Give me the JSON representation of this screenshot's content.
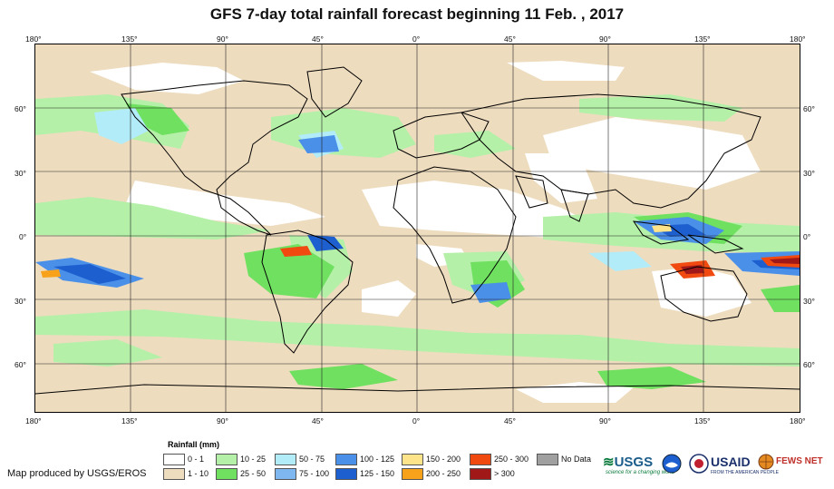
{
  "title": "GFS 7-day total rainfall forecast beginning 11 Feb. , 2017",
  "lon_ticks": [
    "180°",
    "135°",
    "90°",
    "45°",
    "0°",
    "45°",
    "90°",
    "135°",
    "180°"
  ],
  "lat_ticks": [
    "60°",
    "30°",
    "0°",
    "30°",
    "60°"
  ],
  "legend": {
    "title": "Rainfall (mm)",
    "items": [
      {
        "label": "0 - 1",
        "color": "#ffffff"
      },
      {
        "label": "1 - 10",
        "color": "#eedcbf"
      },
      {
        "label": "10 - 25",
        "color": "#b4f0a8"
      },
      {
        "label": "25 - 50",
        "color": "#6fe060"
      },
      {
        "label": "50 - 75",
        "color": "#b2ecf8"
      },
      {
        "label": "75 - 100",
        "color": "#7fb8f0"
      },
      {
        "label": "100 - 125",
        "color": "#4a90e8"
      },
      {
        "label": "125 - 150",
        "color": "#1e5fd0"
      },
      {
        "label": "150 - 200",
        "color": "#fde38a"
      },
      {
        "label": "200 - 250",
        "color": "#f7a21a"
      },
      {
        "label": "250 - 300",
        "color": "#f04a10"
      },
      {
        "label": "> 300",
        "color": "#a01818"
      },
      {
        "label": "No Data",
        "color": "#a0a0a0"
      }
    ]
  },
  "credit": "Map produced by USGS/EROS",
  "logos": {
    "usgs": "USGS",
    "usgs_tagline": "science for a changing world",
    "usaid": "USAID",
    "usaid_tagline": "FROM THE AMERICAN PEOPLE",
    "fewsnet": "FEWS NET"
  }
}
